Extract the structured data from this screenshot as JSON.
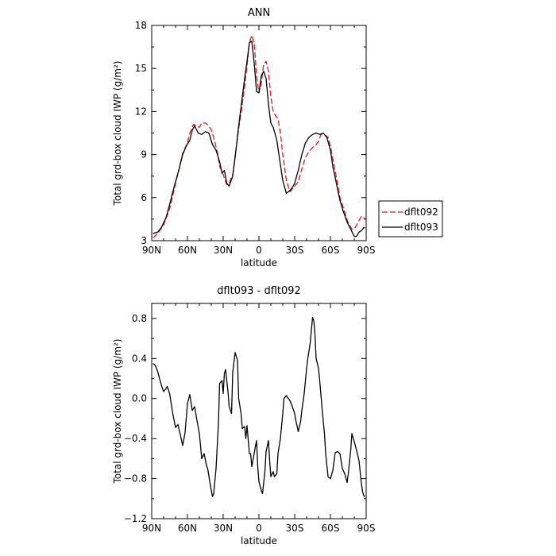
{
  "chart_data": [
    {
      "type": "line",
      "title": "ANN",
      "xlabel": "latitude",
      "ylabel": "Total grd-box cloud IWP (g/m²)",
      "xlim": [
        90,
        -90
      ],
      "ylim": [
        3,
        18
      ],
      "x_ticks": [
        90,
        60,
        30,
        0,
        -30,
        -60,
        -90
      ],
      "x_tick_labels": [
        "90N",
        "60N",
        "30N",
        "0",
        "30S",
        "60S",
        "90S"
      ],
      "y_ticks": [
        3,
        6,
        9,
        12,
        15,
        18
      ],
      "y_tick_labels": [
        "3",
        "6",
        "9",
        "12",
        "15",
        "18"
      ],
      "legend_position": "right",
      "series": [
        {
          "name": "dflt092",
          "color": "#e41a1c",
          "dash": "dashed",
          "x": [
            89,
            85,
            80,
            75,
            70,
            67,
            64,
            60,
            58,
            55,
            52,
            50,
            48,
            45,
            42,
            40,
            38,
            35,
            33,
            30,
            27,
            25,
            22,
            20,
            17,
            14,
            12,
            10,
            8,
            6,
            4,
            2,
            0,
            -2,
            -4,
            -6,
            -8,
            -10,
            -12,
            -14,
            -16,
            -18,
            -20,
            -23,
            -26,
            -28,
            -30,
            -33,
            -36,
            -39,
            -42,
            -45,
            -48,
            -50,
            -52,
            -55,
            -58,
            -60,
            -62,
            -65,
            -68,
            -70,
            -72,
            -75,
            -78,
            -80,
            -82,
            -84,
            -86,
            -88,
            -89
          ],
          "y": [
            3.2,
            3.5,
            4.1,
            5.2,
            7,
            8,
            9.1,
            9.8,
            10.5,
            11.1,
            11.0,
            10.9,
            11.2,
            11.2,
            11.0,
            10.7,
            10.2,
            9.2,
            8.2,
            7.6,
            6.9,
            7.0,
            7.6,
            8.9,
            10.8,
            12.5,
            13.8,
            15.2,
            16.8,
            17.3,
            16.8,
            14.5,
            13.3,
            14.0,
            15.3,
            15.5,
            14.8,
            13.0,
            12.0,
            11.7,
            11.5,
            10.5,
            9.0,
            7.2,
            6.4,
            6.6,
            6.8,
            7.1,
            8.0,
            8.8,
            9.2,
            9.5,
            9.7,
            9.9,
            10.4,
            10.4,
            10.2,
            9.6,
            8.7,
            7.4,
            6.0,
            5.5,
            5.0,
            4.2,
            3.8,
            3.8,
            4.1,
            4.4,
            4.7,
            4.6,
            4.5
          ]
        },
        {
          "name": "dflt093",
          "color": "#000000",
          "dash": "solid",
          "x": [
            89,
            85,
            82,
            78,
            75,
            72,
            70,
            67,
            64,
            61,
            58,
            56,
            54,
            51,
            48,
            45,
            42,
            39,
            36,
            33,
            31,
            29,
            27,
            25,
            22,
            20,
            17,
            14,
            12,
            10,
            8,
            6,
            4,
            2,
            0,
            -2,
            -4,
            -6,
            -8,
            -10,
            -12,
            -15,
            -18,
            -20,
            -23,
            -26,
            -28,
            -30,
            -33,
            -36,
            -39,
            -42,
            -45,
            -48,
            -51,
            -54,
            -57,
            -60,
            -62,
            -65,
            -68,
            -71,
            -74,
            -77,
            -80,
            -82,
            -84,
            -86,
            -88,
            -89
          ],
          "y": [
            3.5,
            3.6,
            3.9,
            4.6,
            5.5,
            6.5,
            7.1,
            8.0,
            9.0,
            9.6,
            10.0,
            10.7,
            11.0,
            10.5,
            10.4,
            10.6,
            10.5,
            9.7,
            9.3,
            8.5,
            7.7,
            7.9,
            7.0,
            6.8,
            7.5,
            8.8,
            11.0,
            13.0,
            14.3,
            15.5,
            16.8,
            16.9,
            15.4,
            13.4,
            13.3,
            14.5,
            14.8,
            14.3,
            12.5,
            11.2,
            10.9,
            10.0,
            8.3,
            7.2,
            6.3,
            6.5,
            6.7,
            7.0,
            7.9,
            9.0,
            9.8,
            10.2,
            10.4,
            10.5,
            10.4,
            10.5,
            10.2,
            9.3,
            8.2,
            7.0,
            5.8,
            5.0,
            4.3,
            3.8,
            3.3,
            3.3,
            3.6,
            3.7,
            3.9,
            3.9
          ]
        }
      ]
    },
    {
      "type": "line",
      "title": "dflt093 - dflt092",
      "xlabel": "latitude",
      "ylabel": "Total grd-box cloud IWP (g/m²)",
      "xlim": [
        90,
        -90
      ],
      "ylim": [
        -1.2,
        0.95
      ],
      "x_ticks": [
        90,
        60,
        30,
        0,
        -30,
        -60,
        -90
      ],
      "x_tick_labels": [
        "90N",
        "60N",
        "30N",
        "0",
        "30S",
        "60S",
        "90S"
      ],
      "y_ticks": [
        -1.2,
        -0.8,
        -0.4,
        0.0,
        0.4,
        0.8
      ],
      "y_tick_labels": [
        "−1.2",
        "−0.8",
        "−0.4",
        "0.0",
        "0.4",
        "0.8"
      ],
      "series": [
        {
          "color": "#000000",
          "dash": "solid",
          "x": [
            89,
            87,
            85,
            83,
            81,
            80,
            78,
            77,
            75,
            73,
            72,
            70,
            68,
            66,
            64,
            62,
            60,
            58,
            56,
            54,
            52,
            50,
            48,
            46,
            44,
            43,
            41,
            39,
            38,
            36,
            34,
            33,
            31,
            30,
            29,
            28,
            26,
            25,
            23,
            22,
            20,
            18,
            17,
            15,
            14,
            12,
            11,
            10,
            8,
            7,
            6,
            4,
            3,
            2,
            1,
            0,
            -2,
            -3,
            -5,
            -6,
            -8,
            -9,
            -10,
            -12,
            -13,
            -15,
            -16,
            -18,
            -20,
            -21,
            -23,
            -24,
            -26,
            -28,
            -30,
            -31,
            -33,
            -35,
            -36,
            -38,
            -40,
            -41,
            -43,
            -45,
            -46,
            -47,
            -48,
            -50,
            -51,
            -53,
            -55,
            -56,
            -58,
            -60,
            -62,
            -64,
            -66,
            -68,
            -70,
            -72,
            -74,
            -75,
            -77,
            -78,
            -80,
            -82,
            -84,
            -86,
            -87,
            -88,
            -89
          ],
          "y": [
            0.35,
            0.33,
            0.27,
            0.18,
            0.1,
            0.07,
            0.1,
            0.12,
            0.05,
            -0.1,
            -0.17,
            -0.29,
            -0.26,
            -0.36,
            -0.47,
            -0.34,
            -0.05,
            0.04,
            -0.12,
            -0.08,
            -0.22,
            -0.35,
            -0.6,
            -0.55,
            -0.67,
            -0.7,
            -0.85,
            -0.98,
            -0.95,
            -0.7,
            -0.25,
            0.15,
            0.18,
            0.05,
            0.25,
            0.29,
            0.07,
            -0.08,
            -0.15,
            0.26,
            0.46,
            0.38,
            0.0,
            -0.15,
            -0.3,
            -0.28,
            -0.4,
            -0.27,
            -0.55,
            -0.55,
            -0.68,
            -0.55,
            -0.48,
            -0.42,
            -0.68,
            -0.83,
            -0.92,
            -0.95,
            -0.73,
            -0.53,
            -0.42,
            -0.62,
            -0.78,
            -0.73,
            -0.78,
            -0.75,
            -0.55,
            -0.4,
            -0.15,
            0.0,
            0.03,
            0.01,
            -0.02,
            -0.08,
            -0.15,
            -0.22,
            -0.33,
            -0.23,
            -0.12,
            0.05,
            0.3,
            0.4,
            0.55,
            0.81,
            0.78,
            0.65,
            0.4,
            0.3,
            0.18,
            -0.1,
            -0.35,
            -0.55,
            -0.78,
            -0.8,
            -0.72,
            -0.54,
            -0.53,
            -0.55,
            -0.7,
            -0.75,
            -0.84,
            -0.75,
            -0.52,
            -0.35,
            -0.43,
            -0.52,
            -0.62,
            -0.85,
            -0.93,
            -0.97,
            -0.98
          ]
        }
      ]
    }
  ]
}
